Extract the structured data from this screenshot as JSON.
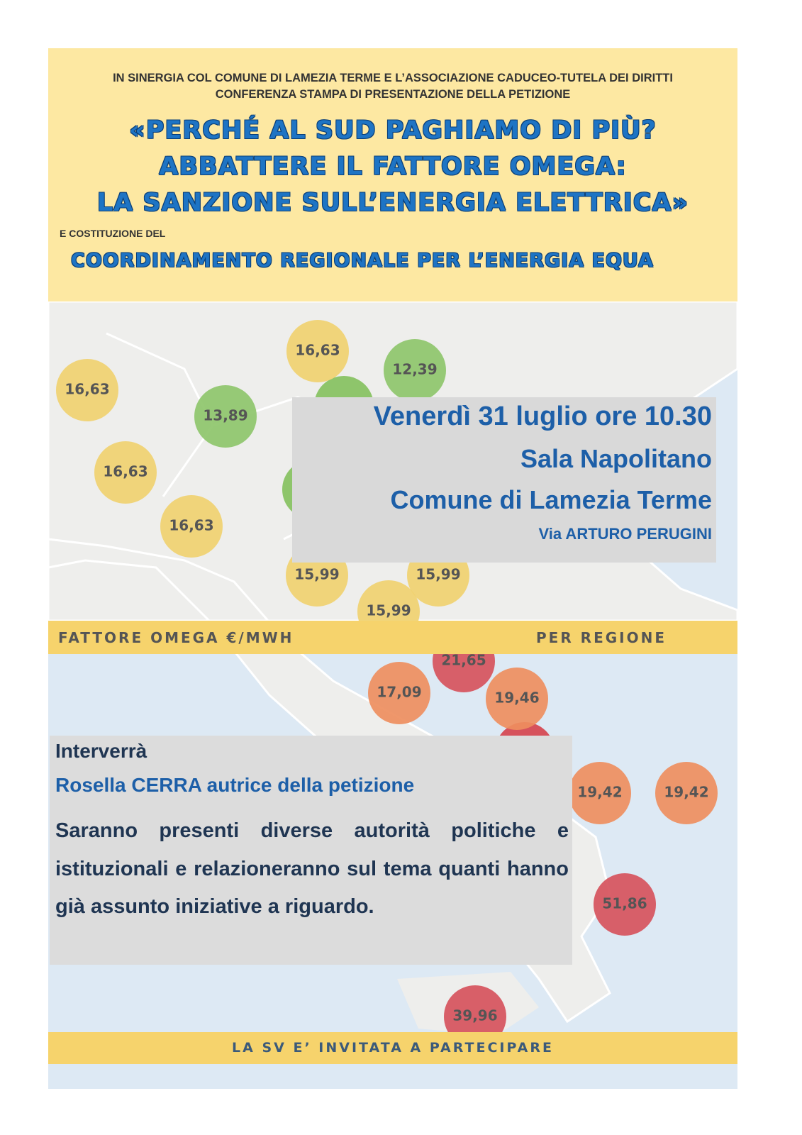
{
  "header": {
    "line1": "IN SINERGIA COL COMUNE DI LAMEZIA TERME E L’ASSOCIAZIONE CADUCEO-TUTELA DEI DIRITTI",
    "line2": "CONFERENZA STAMPA DI PRESENTAZIONE DELLA PETIZIONE",
    "title": [
      "«PERCHÉ AL SUD PAGHIAMO DI PIÙ?",
      "ABBATTERE IL FATTORE OMEGA:",
      "LA SANZIONE SULL’ENERGIA ELETTRICA»"
    ],
    "subtitle_intro": "E COSTITUZIONE DEL",
    "subtitle": "COORDINAMENTO REGIONALE PER L’ENERGIA EQUA"
  },
  "event": {
    "date": "Venerdì 31 luglio ore 10.30",
    "venue": "Sala Napolitano",
    "place": "Comune di Lamezia Terme",
    "address": "Via ARTURO PERUGINI"
  },
  "legend": {
    "left": "FATTORE OMEGA €/MWH",
    "right": "PER REGIONE"
  },
  "bubbles": [
    {
      "label": "16,63",
      "color": "#f0d170"
    },
    {
      "label": "12,39",
      "color": "#8ec56b"
    },
    {
      "label": "16,63",
      "color": "#f0d170"
    },
    {
      "label": "13,89",
      "color": "#8ec56b"
    },
    {
      "label": "16,63",
      "color": "#f0d170"
    },
    {
      "label": "16,63",
      "color": "#f0d170"
    },
    {
      "label": "15,99",
      "color": "#f0d170"
    },
    {
      "label": "15,99",
      "color": "#f0d170"
    },
    {
      "label": "15,99",
      "color": "#f0d170"
    },
    {
      "label": "21,65",
      "color": "#d6525c"
    },
    {
      "label": "17,09",
      "color": "#ee8e5e"
    },
    {
      "label": "19,46",
      "color": "#ee8e5e"
    },
    {
      "label": "19,42",
      "color": "#ee8e5e"
    },
    {
      "label": "19,42",
      "color": "#ee8e5e"
    },
    {
      "label": "51,86",
      "color": "#d6525c"
    },
    {
      "label": "39,96",
      "color": "#d6525c"
    }
  ],
  "speaker": {
    "heading": "Interverrà",
    "name": "Rosella CERRA autrice della petizione",
    "body": "Saranno presenti diverse autorità politiche e istituzionali e relazioneranno sul tema quanti hanno già assunto iniziative a riguardo."
  },
  "footer": "LA SV E’ INVITATA A PARTECIPARE"
}
